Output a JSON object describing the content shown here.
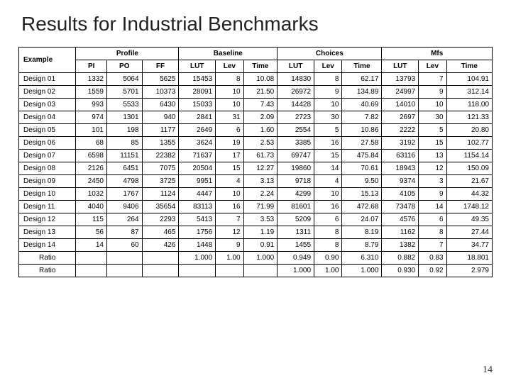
{
  "title": "Results for Industrial Benchmarks",
  "page_number": "14",
  "headers": {
    "example": "Example",
    "profile": "Profile",
    "baseline": "Baseline",
    "choices": "Choices",
    "mfs": "Mfs",
    "pi": "PI",
    "po": "PO",
    "ff": "FF",
    "lut": "LUT",
    "lev": "Lev",
    "time": "Time"
  },
  "rows": [
    {
      "name": "Design 01",
      "pi": "1332",
      "po": "5064",
      "ff": "5625",
      "b_lut": "15453",
      "b_lev": "8",
      "b_time": "10.08",
      "c_lut": "14830",
      "c_lev": "8",
      "c_time": "62.17",
      "m_lut": "13793",
      "m_lev": "7",
      "m_time": "104.91"
    },
    {
      "name": "Design 02",
      "pi": "1559",
      "po": "5701",
      "ff": "10373",
      "b_lut": "28091",
      "b_lev": "10",
      "b_time": "21.50",
      "c_lut": "26972",
      "c_lev": "9",
      "c_time": "134.89",
      "m_lut": "24997",
      "m_lev": "9",
      "m_time": "312.14"
    },
    {
      "name": "Design 03",
      "pi": "993",
      "po": "5533",
      "ff": "6430",
      "b_lut": "15033",
      "b_lev": "10",
      "b_time": "7.43",
      "c_lut": "14428",
      "c_lev": "10",
      "c_time": "40.69",
      "m_lut": "14010",
      "m_lev": "10",
      "m_time": "118.00"
    },
    {
      "name": "Design 04",
      "pi": "974",
      "po": "1301",
      "ff": "940",
      "b_lut": "2841",
      "b_lev": "31",
      "b_time": "2.09",
      "c_lut": "2723",
      "c_lev": "30",
      "c_time": "7.82",
      "m_lut": "2697",
      "m_lev": "30",
      "m_time": "121.33"
    },
    {
      "name": "Design 05",
      "pi": "101",
      "po": "198",
      "ff": "1177",
      "b_lut": "2649",
      "b_lev": "6",
      "b_time": "1.60",
      "c_lut": "2554",
      "c_lev": "5",
      "c_time": "10.86",
      "m_lut": "2222",
      "m_lev": "5",
      "m_time": "20.80"
    },
    {
      "name": "Design 06",
      "pi": "68",
      "po": "85",
      "ff": "1355",
      "b_lut": "3624",
      "b_lev": "19",
      "b_time": "2.53",
      "c_lut": "3385",
      "c_lev": "16",
      "c_time": "27.58",
      "m_lut": "3192",
      "m_lev": "15",
      "m_time": "102.77"
    },
    {
      "name": "Design 07",
      "pi": "6598",
      "po": "11151",
      "ff": "22382",
      "b_lut": "71637",
      "b_lev": "17",
      "b_time": "61.73",
      "c_lut": "69747",
      "c_lev": "15",
      "c_time": "475.84",
      "m_lut": "63116",
      "m_lev": "13",
      "m_time": "1154.14"
    },
    {
      "name": "Design 08",
      "pi": "2126",
      "po": "6451",
      "ff": "7075",
      "b_lut": "20504",
      "b_lev": "15",
      "b_time": "12.27",
      "c_lut": "19860",
      "c_lev": "14",
      "c_time": "70.61",
      "m_lut": "18943",
      "m_lev": "12",
      "m_time": "150.09"
    },
    {
      "name": "Design 09",
      "pi": "2450",
      "po": "4798",
      "ff": "3725",
      "b_lut": "9951",
      "b_lev": "4",
      "b_time": "3.13",
      "c_lut": "9718",
      "c_lev": "4",
      "c_time": "9.50",
      "m_lut": "9374",
      "m_lev": "3",
      "m_time": "21.67"
    },
    {
      "name": "Design 10",
      "pi": "1032",
      "po": "1767",
      "ff": "1124",
      "b_lut": "4447",
      "b_lev": "10",
      "b_time": "2.24",
      "c_lut": "4299",
      "c_lev": "10",
      "c_time": "15.13",
      "m_lut": "4105",
      "m_lev": "9",
      "m_time": "44.32"
    },
    {
      "name": "Design 11",
      "pi": "4040",
      "po": "9406",
      "ff": "35654",
      "b_lut": "83113",
      "b_lev": "16",
      "b_time": "71.99",
      "c_lut": "81601",
      "c_lev": "16",
      "c_time": "472.68",
      "m_lut": "73478",
      "m_lev": "14",
      "m_time": "1748.12"
    },
    {
      "name": "Design 12",
      "pi": "115",
      "po": "264",
      "ff": "2293",
      "b_lut": "5413",
      "b_lev": "7",
      "b_time": "3.53",
      "c_lut": "5209",
      "c_lev": "6",
      "c_time": "24.07",
      "m_lut": "4576",
      "m_lev": "6",
      "m_time": "49.35"
    },
    {
      "name": "Design 13",
      "pi": "56",
      "po": "87",
      "ff": "465",
      "b_lut": "1756",
      "b_lev": "12",
      "b_time": "1.19",
      "c_lut": "1311",
      "c_lev": "8",
      "c_time": "8.19",
      "m_lut": "1162",
      "m_lev": "8",
      "m_time": "27.44"
    },
    {
      "name": "Design 14",
      "pi": "14",
      "po": "60",
      "ff": "426",
      "b_lut": "1448",
      "b_lev": "9",
      "b_time": "0.91",
      "c_lut": "1455",
      "c_lev": "8",
      "c_time": "8.79",
      "m_lut": "1382",
      "m_lev": "7",
      "m_time": "34.77"
    }
  ],
  "ratio_label": "Ratio",
  "ratio1": {
    "b_lut": "1.000",
    "b_lev": "1.00",
    "b_time": "1.000",
    "c_lut": "0.949",
    "c_lev": "0.90",
    "c_time": "6.310",
    "m_lut": "0.882",
    "m_lev": "0.83",
    "m_time": "18.801"
  },
  "ratio2": {
    "c_lut": "1.000",
    "c_lev": "1.00",
    "c_time": "1.000",
    "m_lut": "0.930",
    "m_lev": "0.92",
    "m_time": "2.979"
  }
}
